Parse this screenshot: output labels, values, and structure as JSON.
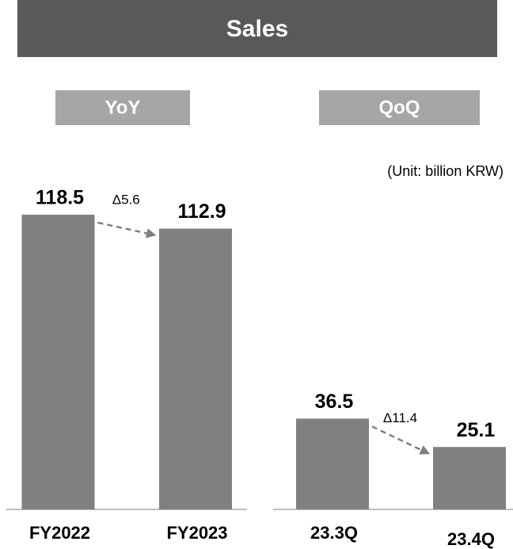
{
  "title": "Sales",
  "unit": "(Unit: billion KRW)",
  "chart_data": [
    {
      "type": "bar",
      "title": "YoY",
      "categories": [
        "FY2022",
        "FY2023"
      ],
      "values": [
        118.5,
        112.9
      ],
      "annotation": "Δ5.6",
      "color": "#808080"
    },
    {
      "type": "bar",
      "title": "QoQ",
      "categories": [
        "23.3Q",
        "23.4Q"
      ],
      "values": [
        36.5,
        25.1
      ],
      "annotation": "Δ11.4",
      "color": "#808080"
    }
  ]
}
